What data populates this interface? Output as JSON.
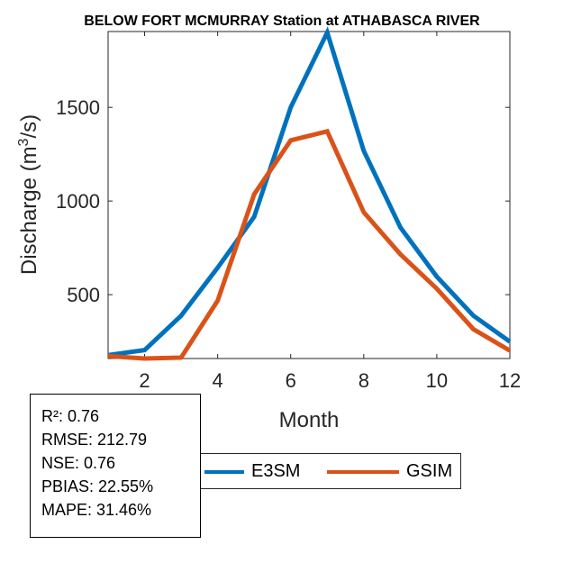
{
  "chart_data": {
    "type": "line",
    "title": "BELOW FORT MCMURRAY  Station at  ATHABASCA RIVER",
    "xlabel": "Month",
    "ylabel": "Discharge (m3/s)",
    "ylabel_parts": {
      "pre": "Discharge (m",
      "sup": "3",
      "post": "/s)"
    },
    "x": [
      1,
      2,
      3,
      4,
      5,
      6,
      7,
      8,
      9,
      10,
      11,
      12
    ],
    "xlim": [
      1,
      12
    ],
    "ylim": [
      159,
      1905
    ],
    "xticks": [
      2,
      4,
      6,
      8,
      10,
      12
    ],
    "yticks": [
      500,
      1000,
      1500
    ],
    "grid": false,
    "series": [
      {
        "name": "E3SM",
        "color": "#0072BD",
        "values": [
          177,
          204,
          388,
          644,
          916,
          1500,
          1900,
          1268,
          860,
          596,
          388,
          249
        ]
      },
      {
        "name": "GSIM",
        "color": "#D95319",
        "values": [
          172,
          159,
          164,
          468,
          1036,
          1324,
          1372,
          940,
          716,
          532,
          316,
          201
        ]
      }
    ],
    "legend_placement": "bottom"
  },
  "stats": [
    "R²: 0.76",
    "RMSE: 212.79",
    "NSE: 0.76",
    "PBIAS: 22.55%",
    "MAPE: 31.46%"
  ]
}
